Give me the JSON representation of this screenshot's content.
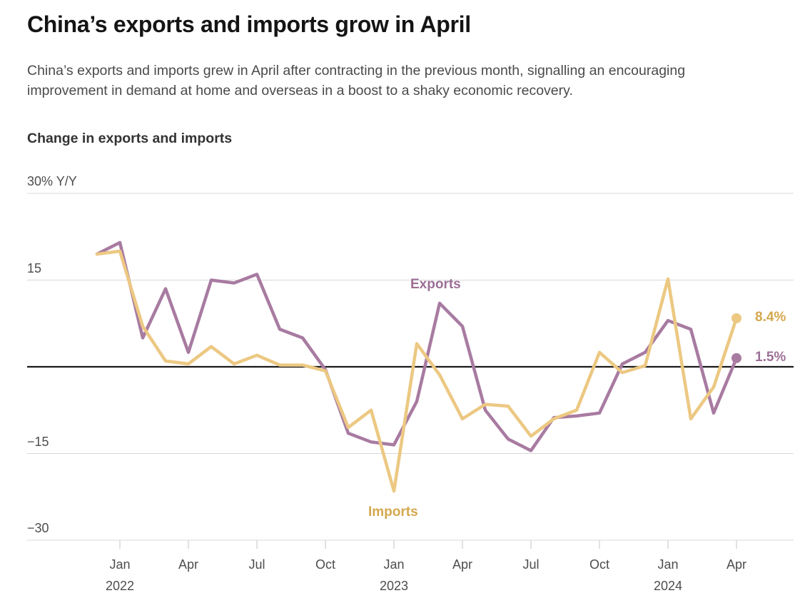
{
  "page": {
    "title": "China’s exports and imports grow in April",
    "subtitle": "China’s exports and imports grew in April after contracting in the previous month, signalling an encouraging improvement in demand at home and overseas in a boost to a shaky economic recovery."
  },
  "chart_data": {
    "type": "line",
    "title": "Change in exports and imports",
    "unit": "% Y/Y",
    "grid": true,
    "legend": "inline-labels",
    "grid_color": "#d8d8d8",
    "zero_line_color": "#1a1a1a",
    "ylim": [
      -30,
      30
    ],
    "yticks": [
      {
        "value": 30,
        "label": "30% Y/Y"
      },
      {
        "value": 15,
        "label": "15"
      },
      {
        "value": -15,
        "label": "−15"
      },
      {
        "value": -30,
        "label": "−30"
      }
    ],
    "xticks": [
      {
        "index": 1,
        "label": "Jan",
        "year": "2022"
      },
      {
        "index": 4,
        "label": "Apr"
      },
      {
        "index": 7,
        "label": "Jul"
      },
      {
        "index": 10,
        "label": "Oct"
      },
      {
        "index": 13,
        "label": "Jan",
        "year": "2023"
      },
      {
        "index": 16,
        "label": "Apr"
      },
      {
        "index": 19,
        "label": "Jul"
      },
      {
        "index": 22,
        "label": "Oct"
      },
      {
        "index": 25,
        "label": "Jan",
        "year": "2024"
      },
      {
        "index": 28,
        "label": "Apr"
      }
    ],
    "x": [
      "Dec 2021",
      "Jan 2022",
      "Feb 2022",
      "Mar 2022",
      "Apr 2022",
      "May 2022",
      "Jun 2022",
      "Jul 2022",
      "Aug 2022",
      "Sep 2022",
      "Oct 2022",
      "Nov 2022",
      "Dec 2022",
      "Jan 2023",
      "Feb 2023",
      "Mar 2023",
      "Apr 2023",
      "May 2023",
      "Jun 2023",
      "Jul 2023",
      "Aug 2023",
      "Sep 2023",
      "Oct 2023",
      "Nov 2023",
      "Dec 2023",
      "Jan 2024",
      "Feb 2024",
      "Mar 2024",
      "Apr 2024"
    ],
    "series": [
      {
        "name": "Exports",
        "color": "#a87ba1",
        "text_color": "#9c6f96",
        "end_label": "1.5%",
        "label_pos": [
          575,
          388
        ],
        "values": [
          19.5,
          21.5,
          5,
          13.5,
          2.5,
          15,
          14.5,
          16,
          6.5,
          5,
          -0.5,
          -11.5,
          -13,
          -13.5,
          -6,
          11,
          7,
          -7.5,
          -12.5,
          -14.5,
          -8.8,
          -8.5,
          -8,
          0.5,
          2.5,
          8,
          6.5,
          -8,
          1.5
        ]
      },
      {
        "name": "Imports",
        "color": "#ecc882",
        "text_color": "#d4a74d",
        "end_label": "8.4%",
        "label_pos": [
          516,
          707
        ],
        "values": [
          19.5,
          20,
          7,
          1,
          0.5,
          3.5,
          0.5,
          2,
          0.3,
          0.3,
          -0.7,
          -10.5,
          -7.5,
          -21.5,
          4,
          -1.4,
          -9,
          -6.5,
          -6.8,
          -12,
          -9,
          -7.5,
          2.5,
          -1,
          0.2,
          15.2,
          -9,
          -3.5,
          8.4
        ]
      }
    ]
  }
}
